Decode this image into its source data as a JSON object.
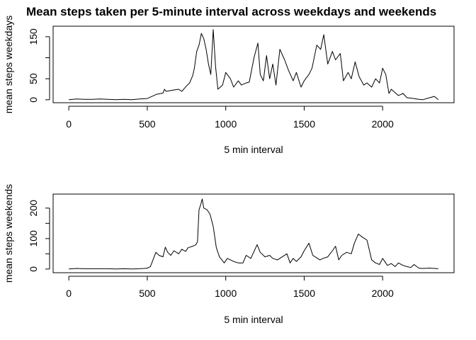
{
  "chart_data": {
    "title": "Mean steps taken per 5-minute interval across weekdays and weekends",
    "panels": [
      {
        "type": "line",
        "xlabel": "5 min interval",
        "ylabel": "mean steps weekdays",
        "xlim": [
          -100,
          2455
        ],
        "ylim": [
          -7,
          175
        ],
        "xticks": [
          0,
          500,
          1000,
          1500,
          2000
        ],
        "yticks": [
          0,
          50,
          100,
          150
        ],
        "ytick_labels": [
          "0",
          "50",
          "",
          "150"
        ],
        "x": [
          0,
          50,
          100,
          150,
          200,
          250,
          300,
          350,
          400,
          450,
          500,
          530,
          560,
          600,
          610,
          620,
          650,
          700,
          720,
          750,
          770,
          790,
          800,
          815,
          830,
          845,
          860,
          875,
          890,
          905,
          920,
          935,
          950,
          980,
          1000,
          1030,
          1050,
          1080,
          1100,
          1130,
          1150,
          1180,
          1205,
          1220,
          1240,
          1260,
          1280,
          1300,
          1320,
          1345,
          1375,
          1400,
          1430,
          1450,
          1480,
          1500,
          1530,
          1550,
          1580,
          1605,
          1625,
          1650,
          1680,
          1700,
          1730,
          1750,
          1780,
          1800,
          1825,
          1850,
          1880,
          1900,
          1930,
          1955,
          1980,
          2000,
          2020,
          2040,
          2055,
          2100,
          2130,
          2155,
          2200,
          2230,
          2255,
          2300,
          2330,
          2355
        ],
        "y": [
          0,
          2,
          1,
          1,
          2,
          1,
          0,
          1,
          0,
          2,
          3,
          8,
          13,
          16,
          25,
          20,
          22,
          25,
          20,
          33,
          40,
          58,
          75,
          115,
          130,
          158,
          145,
          120,
          85,
          60,
          167,
          80,
          25,
          35,
          65,
          50,
          30,
          45,
          35,
          40,
          42,
          100,
          135,
          60,
          45,
          105,
          50,
          85,
          35,
          120,
          95,
          70,
          45,
          65,
          30,
          45,
          60,
          75,
          130,
          120,
          155,
          85,
          115,
          95,
          110,
          45,
          65,
          50,
          90,
          55,
          35,
          40,
          30,
          50,
          40,
          75,
          60,
          15,
          25,
          10,
          15,
          5,
          3,
          1,
          0,
          5,
          8,
          0
        ]
      },
      {
        "type": "line",
        "xlabel": "5 min interval",
        "ylabel": "mean steps weekends",
        "xlim": [
          -100,
          2455
        ],
        "ylim": [
          -12,
          246
        ],
        "xticks": [
          0,
          500,
          1000,
          1500,
          2000
        ],
        "yticks": [
          0,
          50,
          100,
          150,
          200
        ],
        "ytick_labels": [
          "0",
          "",
          "100",
          "",
          "200"
        ],
        "x": [
          0,
          50,
          100,
          150,
          200,
          250,
          300,
          350,
          400,
          450,
          480,
          500,
          520,
          555,
          575,
          600,
          615,
          630,
          650,
          670,
          700,
          720,
          745,
          760,
          790,
          810,
          820,
          830,
          840,
          850,
          860,
          880,
          900,
          920,
          940,
          960,
          990,
          1010,
          1050,
          1080,
          1110,
          1130,
          1160,
          1200,
          1220,
          1250,
          1280,
          1300,
          1330,
          1360,
          1390,
          1410,
          1430,
          1450,
          1480,
          1500,
          1530,
          1555,
          1570,
          1600,
          1620,
          1650,
          1680,
          1700,
          1720,
          1740,
          1770,
          1800,
          1820,
          1845,
          1870,
          1900,
          1930,
          1955,
          1980,
          2000,
          2030,
          2055,
          2080,
          2100,
          2130,
          2155,
          2180,
          2200,
          2230,
          2255,
          2300,
          2355
        ],
        "y": [
          0,
          2,
          1,
          1,
          1,
          1,
          0,
          1,
          0,
          1,
          2,
          3,
          8,
          55,
          45,
          40,
          72,
          55,
          45,
          60,
          50,
          65,
          58,
          70,
          75,
          80,
          90,
          195,
          210,
          230,
          200,
          195,
          180,
          140,
          70,
          40,
          20,
          35,
          25,
          20,
          20,
          45,
          35,
          80,
          55,
          40,
          45,
          35,
          30,
          40,
          50,
          20,
          35,
          25,
          40,
          60,
          85,
          45,
          40,
          30,
          35,
          40,
          60,
          75,
          30,
          45,
          55,
          50,
          85,
          115,
          105,
          95,
          30,
          20,
          15,
          35,
          12,
          18,
          8,
          20,
          12,
          8,
          5,
          15,
          3,
          2,
          3,
          1
        ]
      }
    ]
  }
}
